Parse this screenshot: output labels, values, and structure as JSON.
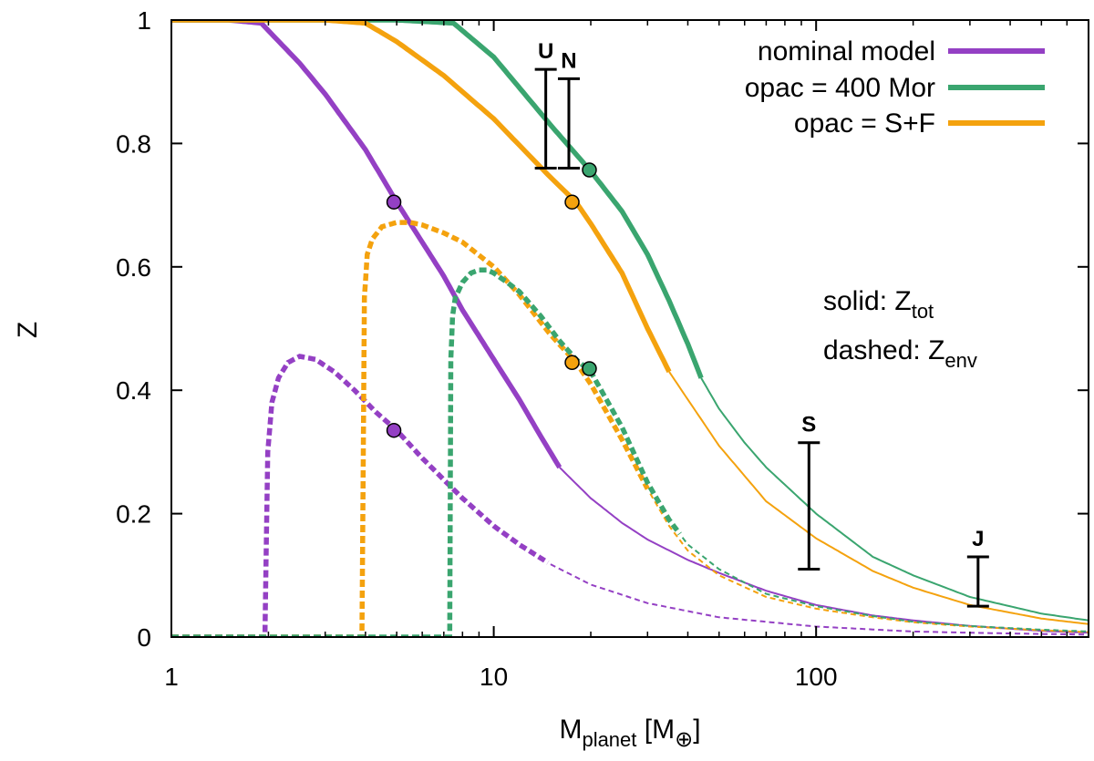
{
  "chart_data": {
    "type": "line",
    "xlabel": {
      "main": "M",
      "sub": "planet",
      "unit_pre": " [M",
      "unit_sub": "⊕",
      "unit_post": "]"
    },
    "ylabel": "Z",
    "xscale": "log",
    "xlim": [
      1,
      700
    ],
    "ylim": [
      0,
      1
    ],
    "x_ticks": [
      1,
      10,
      100
    ],
    "x_tick_labels": [
      "1",
      "10",
      "100"
    ],
    "y_ticks": [
      0,
      0.2,
      0.4,
      0.6,
      0.8,
      1
    ],
    "y_tick_labels": [
      "0",
      "0.2",
      "0.4",
      "0.6",
      "0.8",
      "1"
    ],
    "legend_position": "top-right",
    "colors": {
      "nominal": "#9440c4",
      "mor": "#3aa56f",
      "sf": "#f4a20e",
      "errorbar": "#000000"
    },
    "series": [
      {
        "name": "nominal model",
        "key": "nominal",
        "kind": "Z_tot",
        "x": [
          1,
          1.5,
          1.9,
          2.5,
          3,
          4,
          5,
          6,
          7,
          8,
          10,
          12,
          14,
          16,
          20,
          25,
          30,
          40,
          50,
          70,
          100,
          150,
          200,
          300,
          500,
          700
        ],
        "y": [
          1,
          1,
          0.995,
          0.93,
          0.88,
          0.79,
          0.705,
          0.64,
          0.585,
          0.53,
          0.45,
          0.385,
          0.325,
          0.275,
          0.225,
          0.185,
          0.158,
          0.125,
          0.104,
          0.075,
          0.052,
          0.035,
          0.027,
          0.018,
          0.01,
          0.007
        ],
        "thick_until": 16
      },
      {
        "name": "opac = 400 Mor",
        "key": "mor",
        "kind": "Z_tot",
        "x": [
          1,
          5,
          7.5,
          10,
          15,
          20,
          25,
          30,
          35,
          40,
          44,
          50,
          60,
          70,
          100,
          150,
          200,
          300,
          500,
          700
        ],
        "y": [
          1,
          1,
          0.995,
          0.94,
          0.83,
          0.755,
          0.69,
          0.62,
          0.545,
          0.475,
          0.42,
          0.37,
          0.315,
          0.275,
          0.2,
          0.13,
          0.1,
          0.065,
          0.038,
          0.027
        ],
        "thick_until": 44
      },
      {
        "name": "opac = S+F",
        "key": "sf",
        "kind": "Z_tot",
        "x": [
          1,
          3,
          4,
          5,
          7,
          10,
          15,
          18,
          20,
          25,
          30,
          35,
          40,
          50,
          70,
          100,
          150,
          200,
          300,
          500,
          700
        ],
        "y": [
          1,
          1,
          0.995,
          0.965,
          0.91,
          0.84,
          0.745,
          0.705,
          0.67,
          0.59,
          0.5,
          0.43,
          0.385,
          0.31,
          0.22,
          0.16,
          0.107,
          0.08,
          0.052,
          0.03,
          0.021
        ],
        "thick_until": 35
      },
      {
        "key": "nominal",
        "kind": "Z_env",
        "x": [
          1,
          1.95,
          1.99,
          2.05,
          2.15,
          2.3,
          2.5,
          2.8,
          3.2,
          3.7,
          4.3,
          5,
          6,
          7,
          8,
          10,
          12,
          15,
          20,
          30,
          50,
          100,
          200,
          300,
          500,
          700
        ],
        "y": [
          0,
          0,
          0.3,
          0.38,
          0.42,
          0.445,
          0.455,
          0.45,
          0.43,
          0.4,
          0.365,
          0.335,
          0.29,
          0.255,
          0.225,
          0.18,
          0.15,
          0.118,
          0.085,
          0.055,
          0.032,
          0.017,
          0.009,
          0.007,
          0.005,
          0.004
        ],
        "thick_until": 15
      },
      {
        "key": "sf",
        "kind": "Z_env",
        "x": [
          1,
          3.9,
          3.97,
          4.05,
          4.2,
          4.5,
          5,
          5.5,
          6,
          7,
          8,
          10,
          12,
          15,
          18,
          20,
          25,
          30,
          35,
          40,
          50,
          70,
          100,
          150,
          200,
          300,
          500,
          700
        ],
        "y": [
          0,
          0,
          0.55,
          0.62,
          0.645,
          0.665,
          0.672,
          0.672,
          0.668,
          0.655,
          0.64,
          0.6,
          0.555,
          0.49,
          0.445,
          0.41,
          0.32,
          0.24,
          0.18,
          0.14,
          0.1,
          0.065,
          0.046,
          0.032,
          0.024,
          0.017,
          0.011,
          0.008
        ],
        "thick_until": 30
      },
      {
        "key": "mor",
        "kind": "Z_env",
        "x": [
          1,
          7.3,
          7.36,
          7.45,
          7.6,
          8,
          8.5,
          9,
          9.5,
          10,
          11,
          12,
          14,
          16,
          18,
          20,
          25,
          30,
          35,
          40,
          50,
          70,
          100,
          150,
          200,
          300,
          500,
          700
        ],
        "y": [
          0,
          0,
          0.45,
          0.52,
          0.55,
          0.575,
          0.59,
          0.595,
          0.595,
          0.59,
          0.575,
          0.56,
          0.52,
          0.48,
          0.45,
          0.43,
          0.34,
          0.25,
          0.19,
          0.15,
          0.11,
          0.07,
          0.05,
          0.034,
          0.025,
          0.018,
          0.012,
          0.009
        ],
        "thick_until": 38
      }
    ],
    "markers": [
      {
        "series": "nominal",
        "x": 4.9,
        "y": 0.705
      },
      {
        "series": "nominal",
        "x": 4.9,
        "y": 0.335
      },
      {
        "series": "sf",
        "x": 17.5,
        "y": 0.705
      },
      {
        "series": "sf",
        "x": 17.5,
        "y": 0.445
      },
      {
        "series": "mor",
        "x": 19.8,
        "y": 0.757
      },
      {
        "series": "mor",
        "x": 19.8,
        "y": 0.435
      }
    ],
    "error_bars": [
      {
        "label": "U",
        "x": 14.5,
        "ymin": 0.76,
        "ymax": 0.92
      },
      {
        "label": "N",
        "x": 17.1,
        "ymin": 0.76,
        "ymax": 0.905
      },
      {
        "label": "S",
        "x": 95,
        "ymin": 0.11,
        "ymax": 0.315
      },
      {
        "label": "J",
        "x": 318,
        "ymin": 0.05,
        "ymax": 0.13
      }
    ],
    "annotations": [
      {
        "prefix": "solid: Z",
        "sub": "tot"
      },
      {
        "prefix": "dashed: Z",
        "sub": "env"
      }
    ]
  }
}
